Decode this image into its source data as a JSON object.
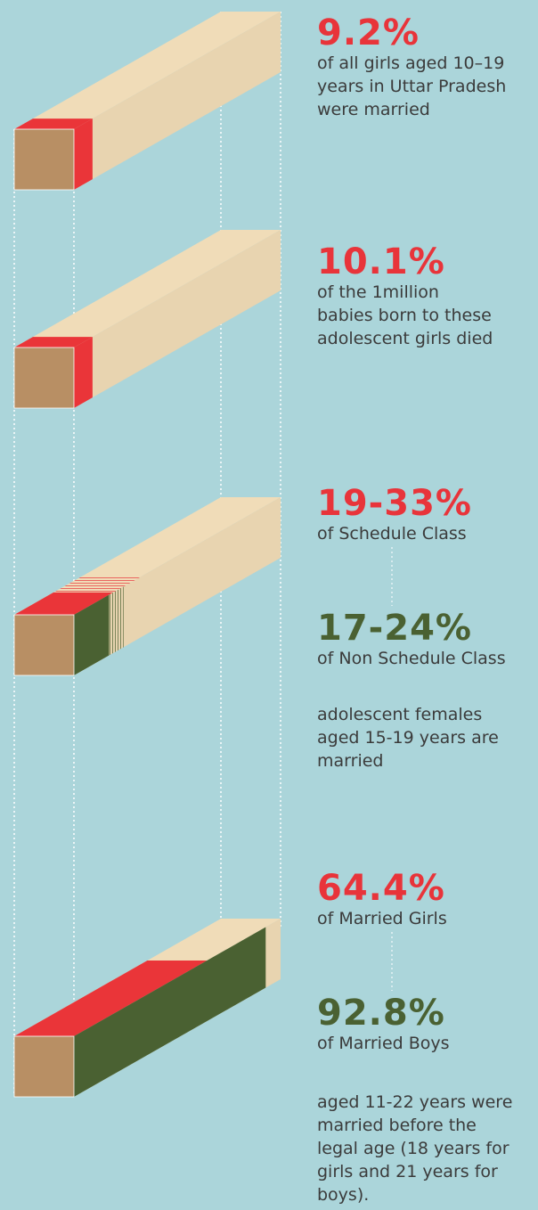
{
  "blocks": [
    {
      "stats": [
        {
          "value": "9.2%",
          "text": [
            "of all girls aged 10–19",
            "years in Uttar Pradesh",
            "were married"
          ]
        }
      ]
    },
    {
      "stats": [
        {
          "value": "10.1%",
          "text": [
            "of the 1million",
            "babies born to these",
            "adolescent girls died"
          ]
        }
      ]
    },
    {
      "stats": [
        {
          "value": "19-33%",
          "text": [
            "of Schedule Class"
          ]
        },
        {
          "value": "17-24%",
          "text": [
            "of Non Schedule Class"
          ]
        }
      ],
      "note": [
        "adolescent females",
        "aged 15-19 years are",
        "married"
      ]
    },
    {
      "stats": [
        {
          "value": "64.4%",
          "text": [
            "of Married Girls"
          ]
        },
        {
          "value": "92.8%",
          "text": [
            "of Married Boys"
          ]
        }
      ],
      "note": [
        "aged 11-22 years were",
        "married before the",
        "legal age (18 years for",
        "girls and 21 years for",
        "boys)."
      ]
    }
  ]
}
